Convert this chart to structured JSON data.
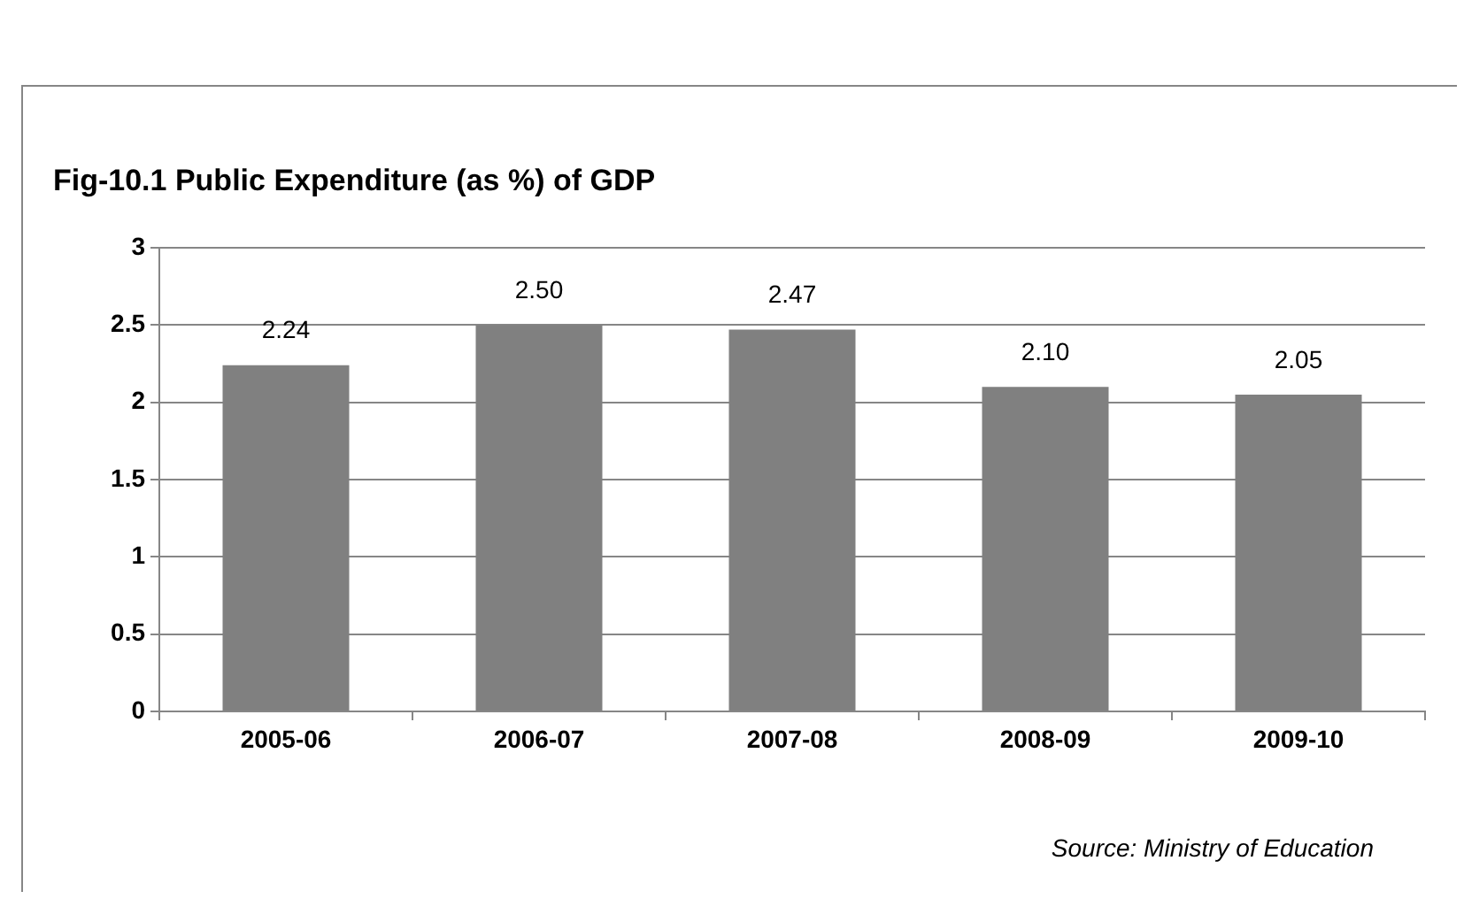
{
  "chart_data": {
    "type": "bar",
    "title": "Fig-10.1 Public Expenditure (as %) of GDP",
    "categories": [
      "2005-06",
      "2006-07",
      "2007-08",
      "2008-09",
      "2009-10"
    ],
    "values": [
      2.24,
      2.5,
      2.47,
      2.1,
      2.05
    ],
    "color": "#808080",
    "value_labels": [
      "2.24",
      "2.50",
      "2.47",
      "2.10",
      "2.05"
    ],
    "ylim": [
      0,
      3
    ],
    "yticks": [
      0,
      0.5,
      1,
      1.5,
      2,
      2.5,
      3
    ],
    "grid": "y",
    "annotations": [
      "Source: Ministry of Education"
    ]
  }
}
